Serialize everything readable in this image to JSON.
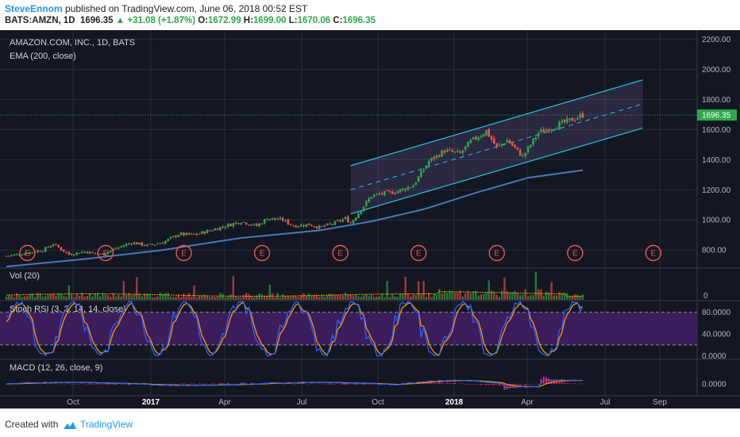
{
  "header": {
    "author": "SteveEnnom",
    "published_text": " published on TradingView.com, June 06, 2018 00:52 EST",
    "symbol": "BATS:AMZN, 1D",
    "last": "1696.35",
    "change": "+31.08 (+1.87%)",
    "o_label": "O:",
    "o_val": "1672.99",
    "h_label": "H:",
    "h_val": "1699.00",
    "l_label": "L:",
    "l_val": "1670.06",
    "c_label": "C:",
    "c_val": "1696.35"
  },
  "footer": {
    "created_with": "Created with",
    "brand": "TradingView"
  },
  "colors": {
    "background": "#131722",
    "grid": "#2a2e39",
    "up": "#2ea84a",
    "down": "#ef5350",
    "ema": "#4a78b8",
    "channel": "#26c6da",
    "stoch_k": "#2962ff",
    "stoch_d": "#ff9800",
    "stoch_band": "#3b1d5c",
    "macd_line": "#2962ff",
    "signal_line": "#ff9800",
    "hist": "#e91e63",
    "earnings": "#ef5350"
  },
  "chart_data": [
    {
      "type": "candlestick",
      "title": "AMAZON.COM, INC., 1D, BATS",
      "indicator": "EMA (200, close)",
      "ylim": [
        680,
        2260
      ],
      "yticks": [
        "800.00",
        "1000.00",
        "1200.00",
        "1400.00",
        "1600.00",
        "1800.00",
        "2000.00",
        "2200.00"
      ],
      "last_price_label": "1696.35",
      "last_price": 1696.35,
      "price_path": [
        [
          0,
          760
        ],
        [
          6,
          775
        ],
        [
          14,
          800
        ],
        [
          18,
          840
        ],
        [
          24,
          770
        ],
        [
          30,
          790
        ],
        [
          36,
          770
        ],
        [
          42,
          810
        ],
        [
          48,
          850
        ],
        [
          54,
          830
        ],
        [
          60,
          850
        ],
        [
          66,
          905
        ],
        [
          72,
          900
        ],
        [
          78,
          930
        ],
        [
          84,
          960
        ],
        [
          90,
          990
        ],
        [
          96,
          960
        ],
        [
          100,
          1010
        ],
        [
          106,
          1000
        ],
        [
          110,
          960
        ],
        [
          116,
          970
        ],
        [
          120,
          950
        ],
        [
          126,
          980
        ],
        [
          130,
          1010
        ],
        [
          132,
          980
        ],
        [
          140,
          1160
        ],
        [
          146,
          1180
        ],
        [
          150,
          1190
        ],
        [
          156,
          1230
        ],
        [
          162,
          1390
        ],
        [
          168,
          1460
        ],
        [
          174,
          1440
        ],
        [
          178,
          1520
        ],
        [
          184,
          1590
        ],
        [
          188,
          1480
        ],
        [
          192,
          1530
        ],
        [
          198,
          1420
        ],
        [
          204,
          1580
        ],
        [
          210,
          1620
        ],
        [
          216,
          1660
        ],
        [
          221,
          1696
        ]
      ],
      "ema_path": [
        [
          0,
          690
        ],
        [
          30,
          740
        ],
        [
          60,
          800
        ],
        [
          90,
          880
        ],
        [
          120,
          930
        ],
        [
          140,
          990
        ],
        [
          160,
          1070
        ],
        [
          180,
          1180
        ],
        [
          200,
          1280
        ],
        [
          221,
          1330
        ]
      ],
      "channel": {
        "start_day": 132,
        "end_day": 244,
        "lower_start": 1040,
        "lower_end": 1610,
        "upper_start": 1360,
        "upper_end": 1930
      },
      "earnings_markers": [
        "E",
        "E",
        "E",
        "E",
        "E",
        "E",
        "E",
        "E",
        "E"
      ],
      "earnings_days": [
        5,
        35,
        65,
        95,
        125,
        155,
        185,
        215,
        245
      ]
    },
    {
      "type": "bar",
      "title": "Vol (20)",
      "yticks": [
        "0"
      ]
    },
    {
      "type": "line",
      "title": "Stoch RSI (3, 3, 14, 14, close)",
      "ylim": [
        -5,
        100
      ],
      "yticks": [
        "80.0000",
        "40.0000",
        "0.0000"
      ],
      "bands": [
        20,
        80
      ],
      "series": [
        {
          "values": []
        },
        {
          "values": []
        }
      ]
    },
    {
      "type": "line",
      "title": "MACD (12, 26, close, 9)",
      "yticks": [
        "0.0000"
      ],
      "series": [
        {
          "values": []
        },
        {
          "values": []
        }
      ]
    }
  ],
  "x_axis": {
    "labels": [
      "Oct",
      "2017",
      "Apr",
      "Jul",
      "Oct",
      "2018",
      "Apr",
      "Jul",
      "Sep"
    ],
    "bold": [
      false,
      true,
      false,
      false,
      false,
      true,
      false,
      false,
      false
    ]
  }
}
